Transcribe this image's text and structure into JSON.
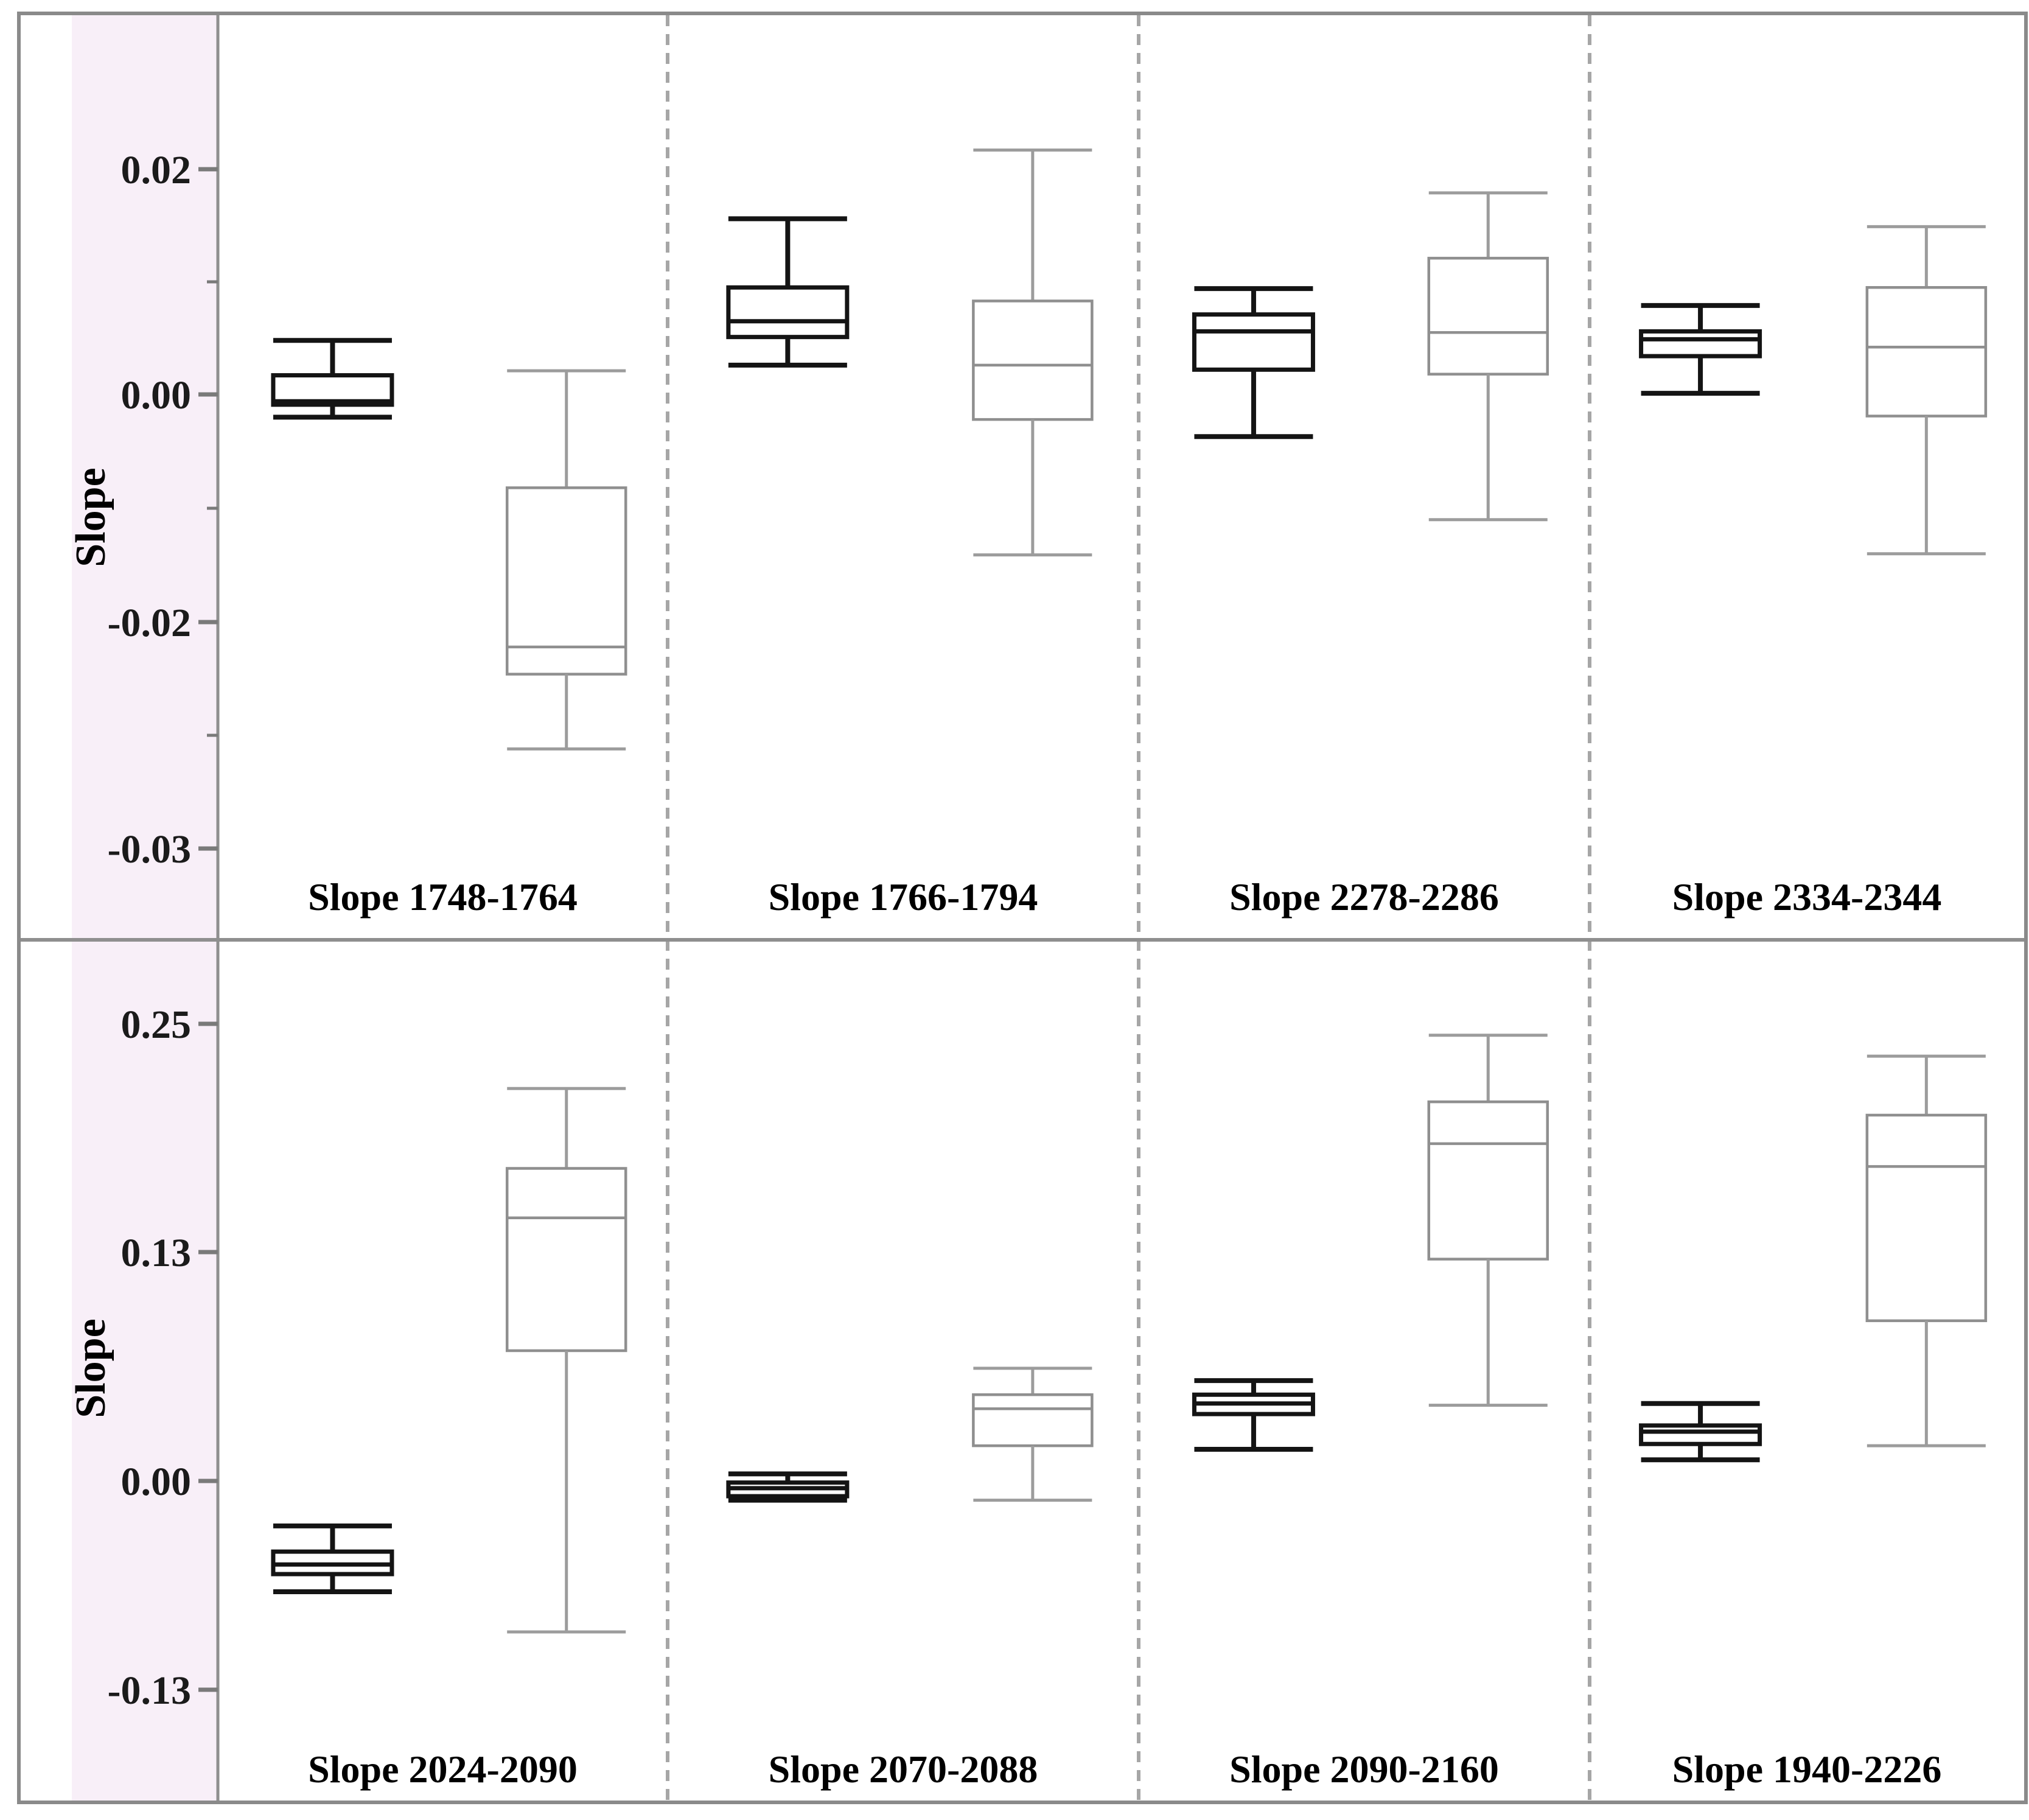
{
  "chart_data": {
    "type": "boxplot",
    "title": "",
    "y_axis_label": "Slope",
    "layout_hints": {
      "grid": false,
      "legend": "none",
      "panels_per_row": 4,
      "rows_count": 2,
      "row_ylim": [
        [
          -0.035,
          0.026
        ],
        [
          -0.17,
          0.28
        ]
      ],
      "panel_separator_style": "dashed"
    },
    "rows": [
      {
        "y_ticks": [
          {
            "label": "0.02",
            "value": 0.02
          },
          {
            "label": "0.00",
            "value": 0.0
          },
          {
            "label": "-0.02",
            "value": -0.02
          },
          {
            "label": "-0.03",
            "value": -0.03
          }
        ],
        "minor_tick_values": [
          0.01,
          -0.01,
          -0.025
        ]
      },
      {
        "y_ticks": [
          {
            "label": "0.25",
            "value": 0.25
          },
          {
            "label": "0.13",
            "value": 0.13
          },
          {
            "label": "0.00",
            "value": 0.0
          },
          {
            "label": "-0.13",
            "value": -0.13
          }
        ],
        "minor_tick_values": []
      }
    ],
    "series": [
      {
        "name": "series-black",
        "color": "#141414"
      },
      {
        "name": "series-gray",
        "color": "#8f8f8f"
      }
    ],
    "panels": [
      {
        "row": 0,
        "label": "Slope 1748-1764",
        "boxes": [
          {
            "series": 0,
            "whisker_high": 0.0048,
            "q3": 0.0017,
            "median": -0.0006,
            "q1": -0.0009,
            "whisker_low": -0.002
          },
          {
            "series": 1,
            "whisker_high": 0.0021,
            "q3": -0.0082,
            "median": -0.0211,
            "q1": -0.0223,
            "whisker_low": -0.0256
          }
        ]
      },
      {
        "row": 0,
        "label": "Slope 1766-1794",
        "boxes": [
          {
            "series": 0,
            "whisker_high": 0.0156,
            "q3": 0.0095,
            "median": 0.0065,
            "q1": 0.0051,
            "whisker_low": 0.0026
          },
          {
            "series": 1,
            "whisker_high": 0.0217,
            "q3": 0.0083,
            "median": 0.0026,
            "q1": -0.0022,
            "whisker_low": -0.0141
          }
        ]
      },
      {
        "row": 0,
        "label": "Slope 2278-2286",
        "boxes": [
          {
            "series": 0,
            "whisker_high": 0.0094,
            "q3": 0.0071,
            "median": 0.0056,
            "q1": 0.0022,
            "whisker_low": -0.0037
          },
          {
            "series": 1,
            "whisker_high": 0.0179,
            "q3": 0.0121,
            "median": 0.0055,
            "q1": 0.0018,
            "whisker_low": -0.011
          }
        ]
      },
      {
        "row": 0,
        "label": "Slope 2334-2344",
        "boxes": [
          {
            "series": 0,
            "whisker_high": 0.0079,
            "q3": 0.0056,
            "median": 0.0049,
            "q1": 0.0034,
            "whisker_low": 0.0001
          },
          {
            "series": 1,
            "whisker_high": 0.0149,
            "q3": 0.0095,
            "median": 0.0042,
            "q1": -0.0019,
            "whisker_low": -0.014
          }
        ]
      },
      {
        "row": 1,
        "label": "Slope 2024-2090",
        "boxes": [
          {
            "series": 0,
            "whisker_high": -0.028,
            "q3": -0.044,
            "median": -0.052,
            "q1": -0.058,
            "whisker_low": -0.069
          },
          {
            "series": 1,
            "whisker_high": 0.216,
            "q3": 0.174,
            "median": 0.148,
            "q1": 0.074,
            "whisker_low": -0.094
          }
        ]
      },
      {
        "row": 1,
        "label": "Slope 2070-2088",
        "boxes": [
          {
            "series": 0,
            "whisker_high": 0.004,
            "q3": -0.001,
            "median": -0.0045,
            "q1": -0.0095,
            "whisker_low": -0.012
          },
          {
            "series": 1,
            "whisker_high": 0.064,
            "q3": 0.049,
            "median": 0.041,
            "q1": 0.02,
            "whisker_low": -0.012
          }
        ]
      },
      {
        "row": 1,
        "label": "Slope 2090-2160",
        "boxes": [
          {
            "series": 0,
            "whisker_high": 0.057,
            "q3": 0.049,
            "median": 0.044,
            "q1": 0.038,
            "whisker_low": 0.018
          },
          {
            "series": 1,
            "whisker_high": 0.244,
            "q3": 0.209,
            "median": 0.187,
            "q1": 0.126,
            "whisker_low": 0.043
          }
        ]
      },
      {
        "row": 1,
        "label": "Slope 1940-2226",
        "boxes": [
          {
            "series": 0,
            "whisker_high": 0.044,
            "q3": 0.0315,
            "median": 0.028,
            "q1": 0.021,
            "whisker_low": 0.012
          },
          {
            "series": 1,
            "whisker_high": 0.233,
            "q3": 0.202,
            "median": 0.175,
            "q1": 0.091,
            "whisker_low": 0.02
          }
        ]
      }
    ]
  },
  "colors": {
    "background": "#ffffff",
    "axis_strip_background": "#f8eff8",
    "axis_line": "#8f8f8f",
    "tick": "#7a7a7a",
    "tick_label": "#1b1b1b",
    "panel_separator": "#a6a6a6",
    "row_separator": "#8f8f8f",
    "outer_border": "#8a8a8a",
    "series_black": "#141414",
    "series_gray_box": "#8f8f8f",
    "series_gray_whisker": "#9c9c9c",
    "box_fill": "#ffffff",
    "x_label": "#000000"
  }
}
